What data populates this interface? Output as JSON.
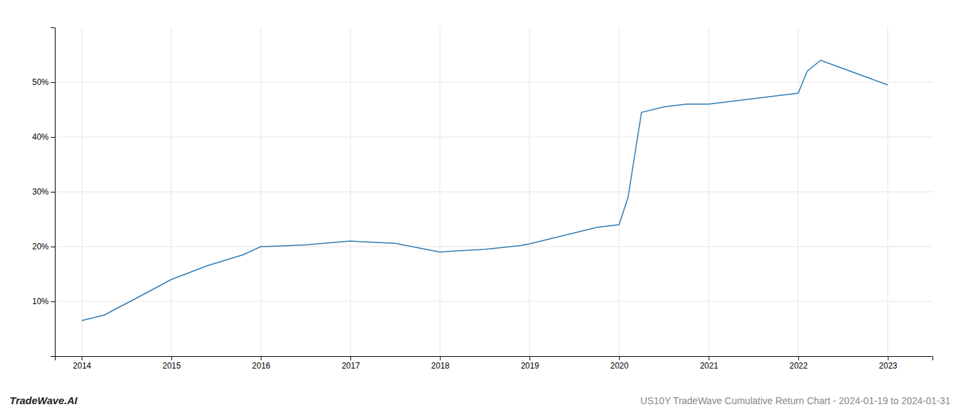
{
  "chart_data": {
    "type": "line",
    "title": "US10Y TradeWave Cumulative Return Chart - 2024-01-19 to 2024-01-31",
    "annotations": [
      "TradeWave.AI"
    ],
    "x": [
      2014.0,
      2014.25,
      2014.6,
      2015.0,
      2015.4,
      2015.8,
      2016.0,
      2016.2,
      2016.5,
      2017.0,
      2017.5,
      2018.0,
      2018.15,
      2018.5,
      2018.9,
      2019.0,
      2019.25,
      2019.5,
      2019.75,
      2020.0,
      2020.1,
      2020.25,
      2020.5,
      2020.75,
      2021.0,
      2021.25,
      2021.5,
      2021.75,
      2022.0,
      2022.1,
      2022.25,
      2022.5,
      2022.75,
      2023.0
    ],
    "values": [
      6.5,
      7.5,
      10.5,
      14.0,
      16.5,
      18.5,
      20.0,
      20.1,
      20.3,
      21.0,
      20.6,
      19.0,
      19.2,
      19.5,
      20.2,
      20.5,
      21.5,
      22.5,
      23.5,
      24.0,
      29.0,
      44.5,
      45.5,
      46.0,
      46.0,
      46.5,
      47.0,
      47.5,
      48.0,
      52.0,
      54.0,
      52.5,
      51.0,
      49.5
    ],
    "color": "#2a7ab5",
    "xlim": [
      2013.7,
      2023.5
    ],
    "xticks": [
      2014,
      2015,
      2016,
      2017,
      2018,
      2019,
      2020,
      2021,
      2022,
      2023
    ],
    "ylim": [
      0,
      60
    ],
    "yticks": [
      {
        "value": 10,
        "label": "10%"
      },
      {
        "value": 20,
        "label": "20%"
      },
      {
        "value": 30,
        "label": "30%"
      },
      {
        "value": 40,
        "label": "40%"
      },
      {
        "value": 50,
        "label": "50%"
      }
    ],
    "grid": true
  }
}
